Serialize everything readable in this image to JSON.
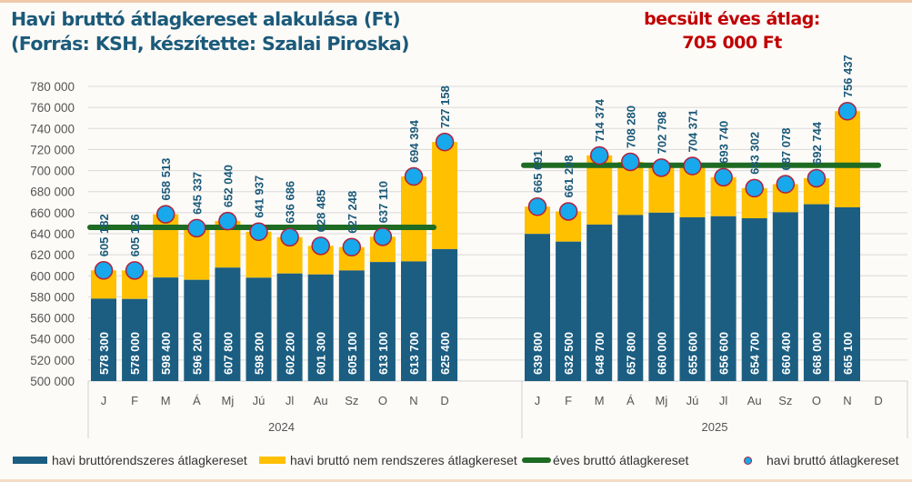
{
  "title_line1": "Havi bruttó átlagkereset alakulása (Ft)",
  "title_line2": "(Forrás: KSH, készítette: Szalai Piroska)",
  "estimate_line1": "becsült éves átlag:",
  "estimate_line2": "705 000 Ft",
  "colors": {
    "regular": "#1b5e82",
    "irregular": "#ffc000",
    "annual": "#1e6b23",
    "marker_fill": "#18a8ec",
    "marker_stroke": "#b2203a",
    "label": "#1b5a7a",
    "estimate": "#c00000"
  },
  "chart_data": {
    "type": "bar",
    "stacked": true,
    "title": "Havi bruttó átlagkereset alakulása (Ft)",
    "xlabel": "",
    "ylabel": "",
    "ylim": [
      500000,
      780000
    ],
    "ytick_step": 20000,
    "yticks": [
      "500 000",
      "520 000",
      "540 000",
      "560 000",
      "580 000",
      "600 000",
      "620 000",
      "640 000",
      "660 000",
      "680 000",
      "700 000",
      "720 000",
      "740 000",
      "760 000",
      "780 000"
    ],
    "grid": true,
    "legend_position": "bottom",
    "groups": [
      {
        "label": "2024",
        "categories": [
          "J",
          "F",
          "M",
          "Á",
          "Mj",
          "Jú",
          "Jl",
          "Au",
          "Sz",
          "O",
          "N",
          "D"
        ],
        "regular": [
          578300,
          578000,
          598400,
          596200,
          607800,
          598200,
          602200,
          601300,
          605100,
          613100,
          613700,
          625400
        ],
        "regular_labels": [
          "578 300",
          "578 000",
          "598 400",
          "596 200",
          "607 800",
          "598 200",
          "602 200",
          "601 300",
          "605 100",
          "613 100",
          "613 700",
          "625 400"
        ],
        "total": [
          605182,
          605126,
          658513,
          645337,
          652040,
          641937,
          636686,
          628485,
          627248,
          637110,
          694394,
          727158
        ],
        "total_labels": [
          "605 182",
          "605 126",
          "658 513",
          "645 337",
          "652 040",
          "641 937",
          "636 686",
          "628 485",
          "627 248",
          "637 110",
          "694 394",
          "727 158"
        ],
        "annual": 646000
      },
      {
        "label": "2025",
        "categories": [
          "J",
          "F",
          "M",
          "Á",
          "Mj",
          "Jú",
          "Jl",
          "Au",
          "Sz",
          "O",
          "N",
          "D"
        ],
        "regular": [
          639800,
          632500,
          648700,
          657800,
          660000,
          655600,
          656600,
          654700,
          660400,
          668000,
          665100,
          null
        ],
        "regular_labels": [
          "639 800",
          "632 500",
          "648 700",
          "657 800",
          "660 000",
          "655 600",
          "656 600",
          "654 700",
          "660 400",
          "668 000",
          "665 100",
          ""
        ],
        "total": [
          665691,
          661208,
          714374,
          708280,
          702798,
          704371,
          693740,
          683302,
          687078,
          692744,
          756437,
          null
        ],
        "total_labels": [
          "665 691",
          "661 208",
          "714 374",
          "708 280",
          "702 798",
          "704 371",
          "693 740",
          "683 302",
          "687 078",
          "692 744",
          "756 437",
          ""
        ],
        "annual": 705000
      }
    ],
    "series": [
      {
        "name": "havi bruttórendszeres átlagkereset",
        "type": "bar"
      },
      {
        "name": "havi bruttó nem rendszeres átlagkereset",
        "type": "bar"
      },
      {
        "name": "éves bruttó átlagkereset",
        "type": "line"
      },
      {
        "name": "havi bruttó átlagkereset",
        "type": "scatter"
      }
    ]
  },
  "legend": [
    "havi bruttórendszeres átlagkereset",
    "havi bruttó nem rendszeres átlagkereset",
    "éves bruttó átlagkereset",
    "havi bruttó átlagkereset"
  ]
}
